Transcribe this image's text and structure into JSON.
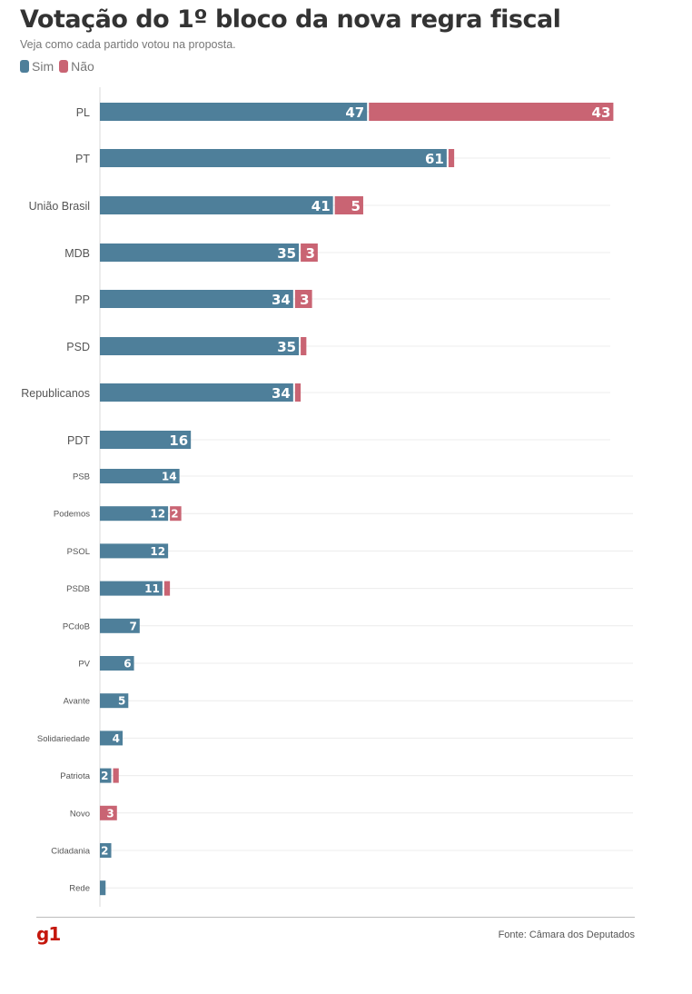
{
  "header": {
    "title": "Votação do 1º bloco da nova regra fiscal",
    "subtitle": "Veja como cada partido votou na proposta."
  },
  "legend": [
    {
      "label": "Sim",
      "color": "#4e7f9a"
    },
    {
      "label": "Não",
      "color": "#c96473"
    }
  ],
  "footer": {
    "brand": "g1",
    "source": "Fonte: Câmara dos Deputados"
  },
  "chart_data": {
    "type": "bar",
    "orientation": "horizontal",
    "stacked": true,
    "grid": true,
    "categories": [
      "PL",
      "PT",
      "União Brasil",
      "MDB",
      "PP",
      "PSD",
      "Republicanos",
      "PDT",
      "PSB",
      "Podemos",
      "PSOL",
      "PSDB",
      "PCdoB",
      "PV",
      "Avante",
      "Solidariedade",
      "Patriota",
      "Novo",
      "Cidadania",
      "Rede"
    ],
    "series": [
      {
        "name": "Sim",
        "color": "#4e7f9a",
        "values": [
          47,
          61,
          41,
          35,
          34,
          35,
          34,
          16,
          14,
          12,
          12,
          11,
          7,
          6,
          5,
          4,
          2,
          0,
          2,
          1
        ]
      },
      {
        "name": "Não",
        "color": "#c96473",
        "values": [
          43,
          1,
          5,
          3,
          3,
          1,
          1,
          0,
          0,
          2,
          0,
          1,
          0,
          0,
          0,
          0,
          1,
          3,
          0,
          0
        ]
      }
    ],
    "data_labels": {
      "Sim": [
        "47",
        "61",
        "41",
        "35",
        "34",
        "35",
        "34",
        "16",
        "14",
        "12",
        "12",
        "11",
        "7",
        "6",
        "5",
        "4",
        "2",
        "",
        "2",
        ""
      ],
      "Não": [
        "43",
        "",
        "5",
        "3",
        "3",
        "",
        "",
        "",
        "",
        "2",
        "",
        "",
        "",
        "",
        "",
        "",
        "",
        "3",
        "",
        ""
      ]
    }
  }
}
